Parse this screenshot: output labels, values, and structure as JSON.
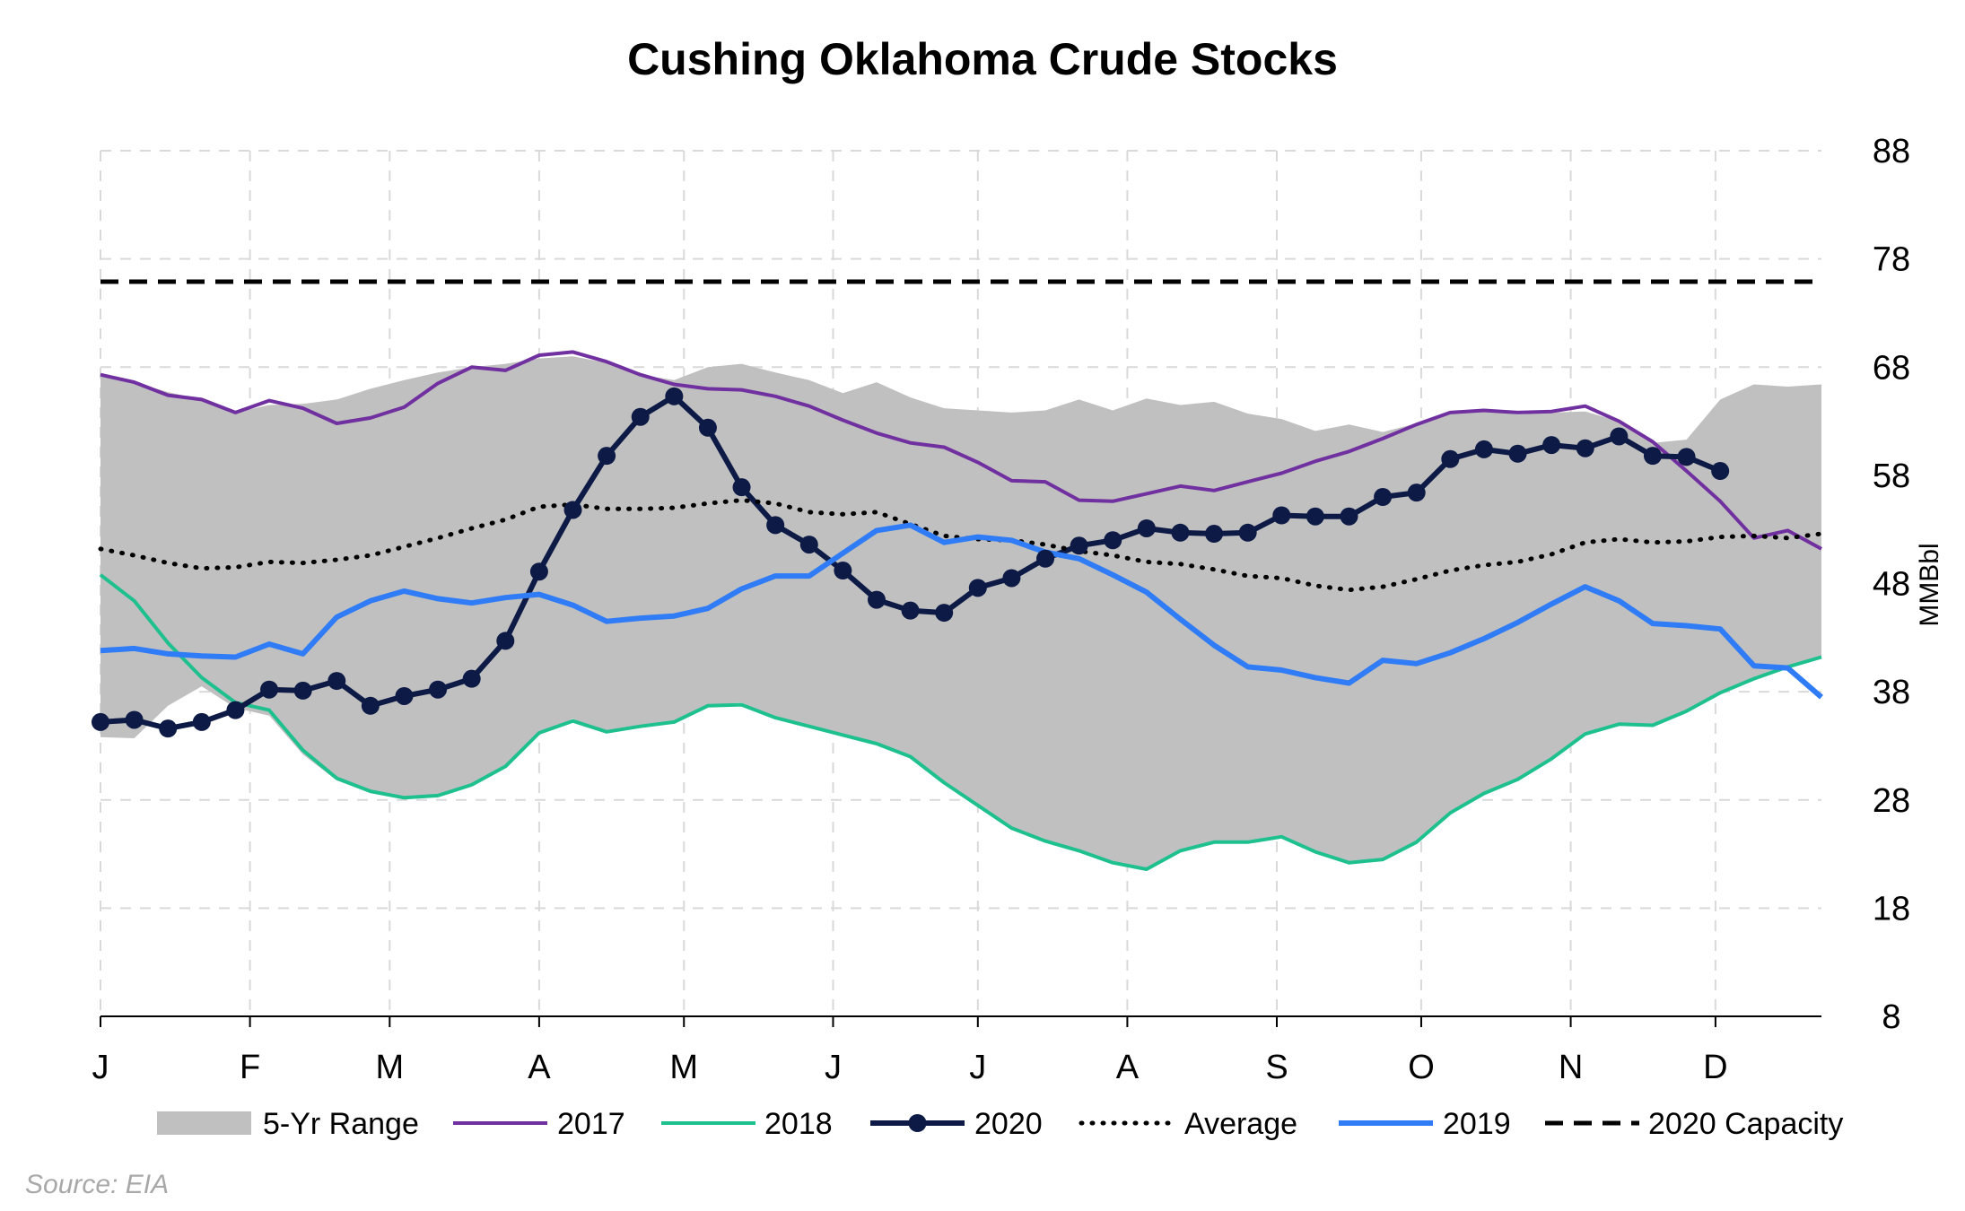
{
  "chart_data": {
    "type": "line",
    "title": "Cushing Oklahoma Crude Stocks",
    "ylabel": "MMBbl",
    "xlabel": "",
    "ylim": [
      8,
      88
    ],
    "yticks": [
      "8",
      "18",
      "28",
      "38",
      "48",
      "58",
      "68",
      "78",
      "88"
    ],
    "xlim": [
      0,
      51
    ],
    "month_ticks": [
      {
        "label": "J",
        "x": 0
      },
      {
        "label": "F",
        "x": 4.43
      },
      {
        "label": "M",
        "x": 8.57
      },
      {
        "label": "A",
        "x": 13.0
      },
      {
        "label": "M",
        "x": 17.29
      },
      {
        "label": "J",
        "x": 21.71
      },
      {
        "label": "J",
        "x": 26.0
      },
      {
        "label": "A",
        "x": 30.43
      },
      {
        "label": "S",
        "x": 34.86
      },
      {
        "label": "O",
        "x": 39.14
      },
      {
        "label": "N",
        "x": 43.57
      },
      {
        "label": "D",
        "x": 47.86
      }
    ],
    "grid": true,
    "legend_placement": "bottom",
    "source": "Source: EIA",
    "range": {
      "name": "5-Yr Range",
      "color": "#c0c0c0",
      "upper": [
        67.3,
        66.6,
        65.7,
        65.0,
        63.8,
        64.5,
        64.6,
        65.0,
        66.0,
        66.8,
        67.5,
        68.0,
        68.3,
        68.8,
        69.0,
        68.4,
        67.3,
        66.8,
        68.0,
        68.3,
        67.5,
        66.8,
        65.6,
        66.6,
        65.2,
        64.2,
        64.0,
        63.8,
        64.0,
        65.0,
        64.0,
        65.1,
        64.5,
        64.8,
        63.7,
        63.2,
        62.1,
        62.7,
        62.0,
        62.8,
        63.8,
        64.0,
        63.6,
        63.8,
        63.9,
        63.0,
        61.0,
        61.3,
        65.0,
        66.4,
        66.2,
        66.4
      ],
      "lower": [
        33.8,
        33.7,
        36.7,
        38.5,
        36.5,
        35.8,
        32.2,
        29.8,
        28.7,
        28.1,
        28.5,
        29.4,
        31.2,
        34.2,
        35.5,
        34.2,
        34.7,
        35.2,
        36.8,
        37.0,
        35.6,
        34.8,
        34.0,
        33.2,
        32.0,
        29.6,
        27.5,
        25.4,
        24.2,
        23.3,
        22.2,
        21.6,
        23.3,
        24.1,
        24.1,
        24.6,
        23.2,
        22.2,
        22.5,
        24.1,
        26.8,
        28.6,
        29.9,
        31.8,
        34.1,
        35.0,
        34.9,
        36.2,
        37.9,
        39.2,
        40.3,
        41.2
      ]
    },
    "series": [
      {
        "name": "2017",
        "color": "#7030a0",
        "style": "solid",
        "values": [
          67.3,
          66.6,
          65.4,
          65.0,
          63.8,
          64.9,
          64.2,
          62.8,
          63.3,
          64.3,
          66.5,
          68.0,
          67.7,
          69.1,
          69.4,
          68.5,
          67.3,
          66.4,
          66.0,
          65.9,
          65.3,
          64.4,
          63.1,
          61.9,
          61.0,
          60.6,
          59.2,
          57.5,
          57.4,
          55.7,
          55.6,
          56.3,
          57.0,
          56.6,
          57.4,
          58.2,
          59.3,
          60.2,
          61.4,
          62.7,
          63.8,
          64.0,
          63.8,
          63.9,
          64.4,
          63.0,
          61.1,
          58.4,
          55.6,
          52.2,
          52.9,
          51.2
        ]
      },
      {
        "name": "2018",
        "color": "#1ec08e",
        "style": "solid",
        "values": [
          48.8,
          46.4,
          42.5,
          39.3,
          37.0,
          36.3,
          32.6,
          30.0,
          28.8,
          28.2,
          28.4,
          29.4,
          31.1,
          34.2,
          35.3,
          34.3,
          34.8,
          35.2,
          36.7,
          36.8,
          35.6,
          34.8,
          34.0,
          33.2,
          32.0,
          29.6,
          27.5,
          25.4,
          24.2,
          23.3,
          22.2,
          21.6,
          23.3,
          24.1,
          24.1,
          24.6,
          23.2,
          22.2,
          22.5,
          24.1,
          26.8,
          28.6,
          29.9,
          31.8,
          34.1,
          35.0,
          34.9,
          36.2,
          37.9,
          39.2,
          40.3,
          41.2
        ]
      },
      {
        "name": "2020",
        "color": "#0c1a45",
        "style": "solid-markers",
        "values": [
          35.2,
          35.4,
          34.6,
          35.2,
          36.3,
          38.2,
          38.1,
          39.0,
          36.7,
          37.6,
          38.2,
          39.2,
          42.7,
          49.1,
          54.8,
          59.8,
          63.4,
          65.3,
          62.4,
          56.9,
          53.4,
          51.6,
          49.2,
          46.5,
          45.5,
          45.3,
          47.6,
          48.5,
          50.3,
          51.5,
          52.0,
          53.1,
          52.7,
          52.6,
          52.7,
          54.3,
          54.2,
          54.2,
          56.0,
          56.4,
          59.5,
          60.4,
          60.0,
          60.8,
          60.5,
          61.6,
          59.8,
          59.7,
          58.4
        ]
      },
      {
        "name": "Average",
        "color": "#000000",
        "style": "dotted",
        "values": [
          51.2,
          50.6,
          49.9,
          49.4,
          49.5,
          50.0,
          49.9,
          50.2,
          50.6,
          51.4,
          52.2,
          53.1,
          53.9,
          55.1,
          55.3,
          54.9,
          54.9,
          55.0,
          55.4,
          55.7,
          55.4,
          54.6,
          54.4,
          54.6,
          53.5,
          52.4,
          52.1,
          52.0,
          51.6,
          51.0,
          50.6,
          50.0,
          49.8,
          49.3,
          48.7,
          48.5,
          47.8,
          47.4,
          47.7,
          48.4,
          49.2,
          49.7,
          50.0,
          50.7,
          51.8,
          52.1,
          51.8,
          51.9,
          52.3,
          52.4,
          52.2,
          52.6
        ]
      },
      {
        "name": "2019",
        "color": "#2f7cf6",
        "style": "solid",
        "values": [
          41.8,
          42.0,
          41.5,
          41.3,
          41.2,
          42.4,
          41.5,
          44.9,
          46.4,
          47.3,
          46.6,
          46.2,
          46.7,
          47.0,
          46.0,
          44.5,
          44.8,
          45.0,
          45.7,
          47.5,
          48.7,
          48.7,
          50.8,
          52.9,
          53.4,
          51.8,
          52.3,
          52.0,
          50.9,
          50.3,
          48.8,
          47.2,
          44.7,
          42.3,
          40.3,
          40.0,
          39.3,
          38.8,
          40.9,
          40.6,
          41.6,
          42.9,
          44.4,
          46.1,
          47.7,
          46.4,
          44.3,
          44.1,
          43.8,
          40.4,
          40.2,
          37.5
        ]
      },
      {
        "name": "2020 Capacity",
        "color": "#000000",
        "style": "dashed",
        "values": [
          75.9,
          75.9
        ]
      }
    ]
  },
  "legend": [
    {
      "label": "5-Yr Range",
      "kind": "range",
      "color": "#c0c0c0"
    },
    {
      "label": "2017",
      "kind": "line",
      "color": "#7030a0"
    },
    {
      "label": "2018",
      "kind": "line",
      "color": "#1ec08e"
    },
    {
      "label": "2020",
      "kind": "marker",
      "color": "#0c1a45"
    },
    {
      "label": "Average",
      "kind": "dotted",
      "color": "#000000"
    },
    {
      "label": "2019",
      "kind": "line",
      "color": "#2f7cf6"
    },
    {
      "label": "2020 Capacity",
      "kind": "dashed",
      "color": "#000000"
    }
  ]
}
